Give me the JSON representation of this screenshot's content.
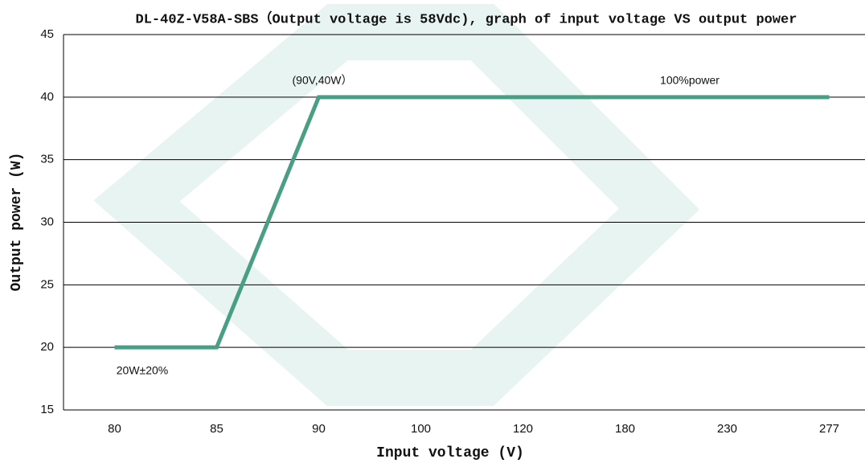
{
  "chart_data": {
    "type": "line",
    "title": "DL-40Z-V58A-SBS（Output voltage is 58Vdc), graph of input voltage VS output power",
    "x_label": "Input voltage (V)",
    "y_label": "Output power (W)",
    "categories": [
      "80",
      "85",
      "90",
      "100",
      "120",
      "180",
      "230",
      "277"
    ],
    "series": [
      {
        "name": "Output power",
        "color": "#4a9e83",
        "values": [
          20,
          20,
          40,
          40,
          40,
          40,
          40,
          40
        ]
      }
    ],
    "ylim": [
      15,
      45
    ],
    "yticks": [
      15,
      20,
      25,
      30,
      35,
      40,
      45
    ],
    "grid": true,
    "annotations": [
      "(90V,40W）",
      "100%power",
      "20W±20%"
    ]
  }
}
